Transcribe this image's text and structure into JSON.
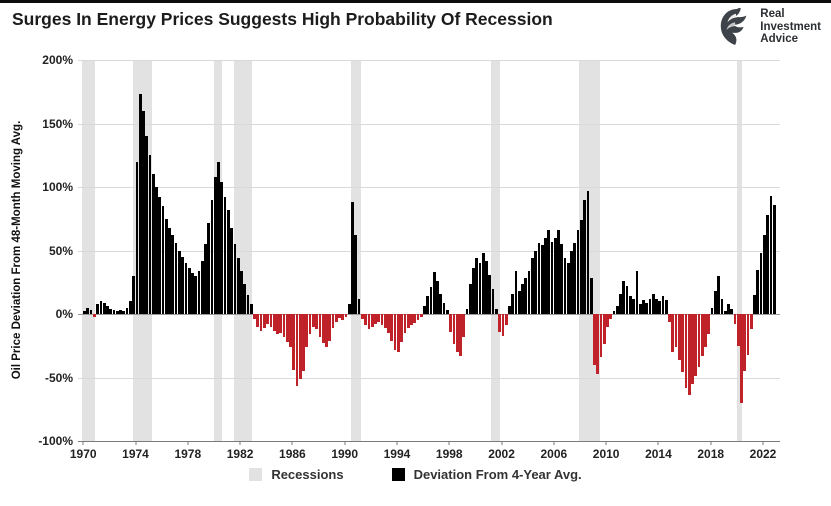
{
  "header": {
    "logo": {
      "line1": "Real",
      "line2": "Investment",
      "line3": "Advice"
    }
  },
  "chart_data": {
    "type": "bar",
    "title": "Surges In Energy Prices Suggests High Probability Of Recession",
    "xlabel": "",
    "ylabel": "Oil Price Deviation From 48-Month Moving Avg.",
    "ylim": [
      -100,
      200
    ],
    "xlim": [
      1969.6,
      2023.3
    ],
    "y_ticks": [
      200,
      150,
      100,
      50,
      0,
      -50,
      -100
    ],
    "x_ticks": [
      1970,
      1974,
      1978,
      1982,
      1986,
      1990,
      1994,
      1998,
      2002,
      2006,
      2010,
      2014,
      2018,
      2022
    ],
    "grid": "horizontal",
    "legend_position": "bottom",
    "series_name": "Deviation From 4-Year Avg.",
    "series_start_year": 1970.0,
    "series_step_years": 0.25,
    "values": [
      2,
      5,
      3,
      -2,
      8,
      10,
      9,
      6,
      4,
      3,
      2,
      3,
      2,
      5,
      10,
      30,
      120,
      173,
      160,
      140,
      125,
      110,
      100,
      92,
      85,
      75,
      68,
      62,
      56,
      50,
      45,
      40,
      36,
      32,
      30,
      34,
      42,
      55,
      72,
      90,
      108,
      120,
      104,
      92,
      82,
      68,
      55,
      44,
      34,
      24,
      15,
      8,
      -4,
      -10,
      -13,
      -11,
      -8,
      -10,
      -13,
      -16,
      -15,
      -18,
      -22,
      -26,
      -44,
      -57,
      -51,
      -45,
      -26,
      -16,
      -10,
      -12,
      -18,
      -23,
      -26,
      -21,
      -11,
      -6,
      -3,
      -5,
      -2,
      8,
      88,
      62,
      12,
      -4,
      -9,
      -12,
      -10,
      -8,
      -6,
      -9,
      -11,
      -15,
      -21,
      -28,
      -30,
      -22,
      -15,
      -11,
      -9,
      -7,
      -5,
      -2,
      6,
      14,
      21,
      33,
      26,
      16,
      9,
      3,
      -14,
      -24,
      -30,
      -33,
      -18,
      4,
      24,
      36,
      44,
      40,
      48,
      42,
      31,
      20,
      4,
      -14,
      -17,
      -9,
      6,
      16,
      34,
      18,
      24,
      28,
      34,
      44,
      50,
      56,
      54,
      60,
      66,
      57,
      60,
      66,
      55,
      44,
      40,
      50,
      56,
      66,
      74,
      90,
      97,
      28,
      -40,
      -47,
      -34,
      -24,
      -10,
      -4,
      2,
      6,
      16,
      26,
      22,
      14,
      12,
      34,
      8,
      11,
      9,
      12,
      16,
      12,
      10,
      14,
      11,
      -6,
      -30,
      -26,
      -36,
      -46,
      -58,
      -64,
      -55,
      -49,
      -42,
      -33,
      -26,
      -16,
      5,
      18,
      30,
      12,
      2,
      8,
      4,
      -8,
      -25,
      -70,
      -45,
      -32,
      -12,
      15,
      35,
      48,
      62,
      78,
      93,
      86
    ],
    "recessions": [
      [
        1969.92,
        1970.92
      ],
      [
        1973.83,
        1975.25
      ],
      [
        1980.0,
        1980.58
      ],
      [
        1981.5,
        1982.92
      ],
      [
        1990.5,
        1991.25
      ],
      [
        2001.17,
        2001.92
      ],
      [
        2007.92,
        2009.5
      ],
      [
        2020.0,
        2020.42
      ]
    ],
    "colors": {
      "positive": "#000000",
      "negative": "#c0222a",
      "recession": "#e2e2e2",
      "grid": "#d9d9d9"
    },
    "legend": [
      {
        "label": "Recessions",
        "color": "#e2e2e2"
      },
      {
        "label": "Deviation From 4-Year Avg.",
        "color": "#000000"
      }
    ]
  }
}
